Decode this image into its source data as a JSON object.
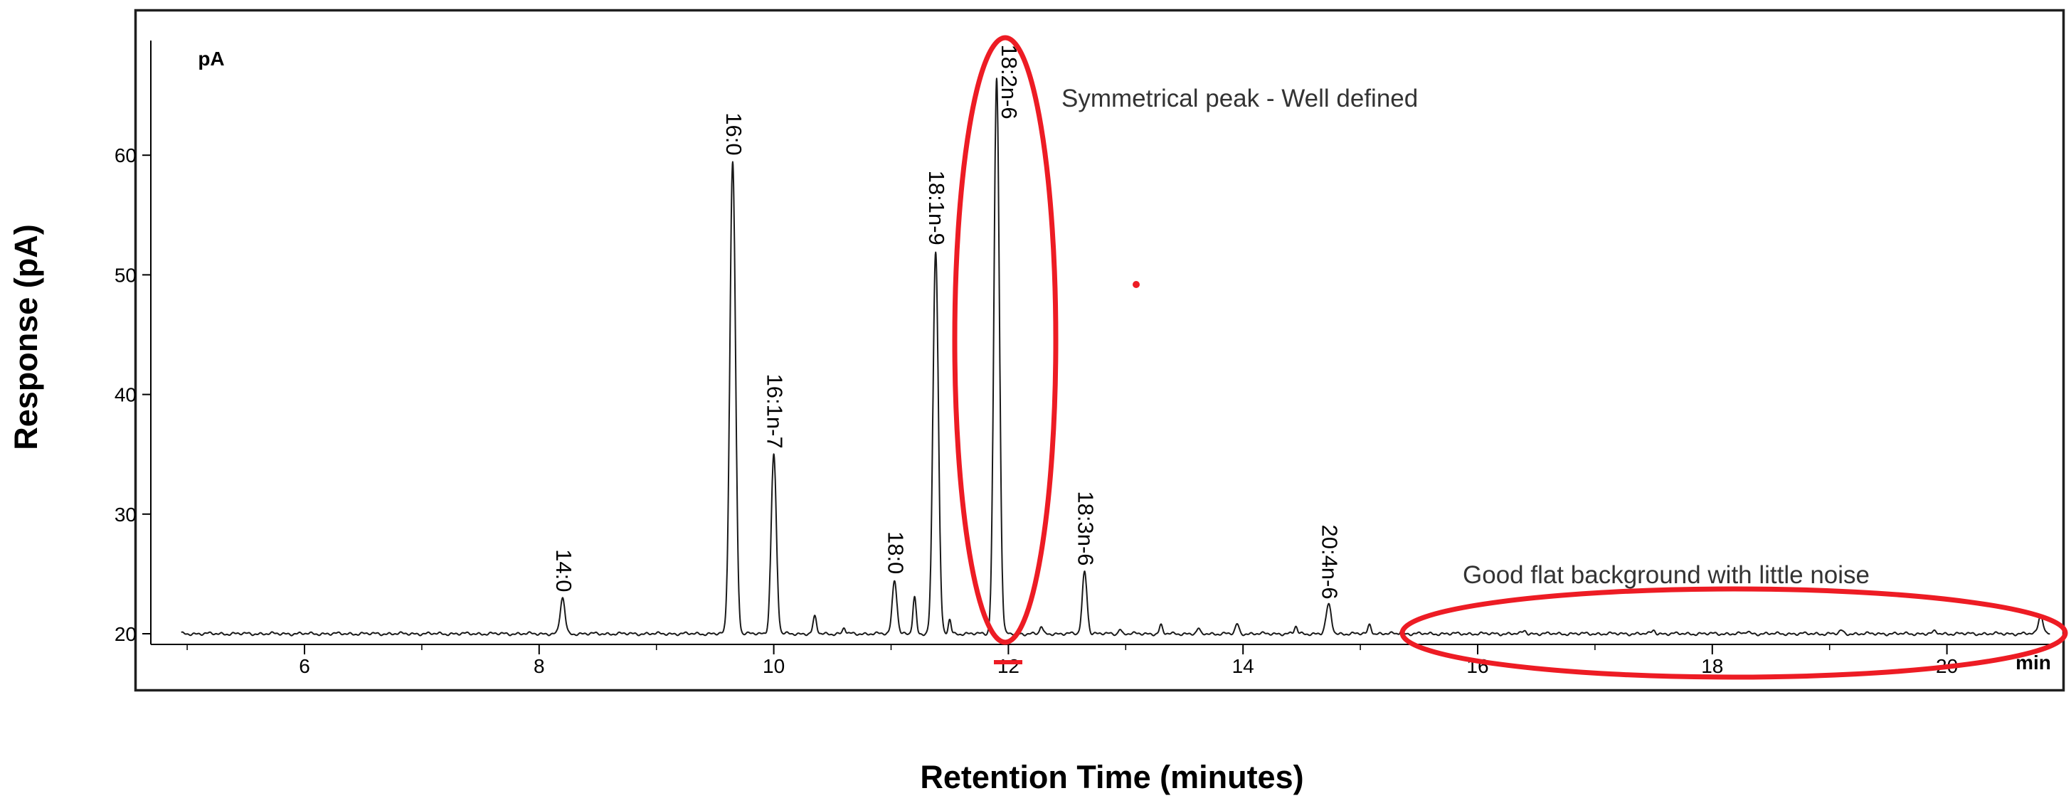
{
  "chart_data": {
    "type": "line",
    "chart_kind": "gas-chromatogram",
    "title": "",
    "xlabel": "Retention Time (minutes)",
    "ylabel": "Response (pA)",
    "x_unit_label": "min",
    "y_unit_label": "pA",
    "xlim": [
      4.95,
      20.88
    ],
    "ylim": [
      19,
      72
    ],
    "x_ticks_major": [
      6,
      8,
      10,
      12,
      14,
      16,
      18,
      20
    ],
    "x_ticks_minor": [
      5,
      7,
      9,
      11,
      13,
      15,
      17,
      19
    ],
    "y_ticks": [
      20,
      30,
      40,
      50,
      60
    ],
    "grid": false,
    "legend": false,
    "baseline_pA": 20,
    "peaks": [
      {
        "label": "14:0",
        "rt_min": 8.2,
        "apex_pA": 23.0,
        "sigma_min": 0.02
      },
      {
        "label": "16:0",
        "rt_min": 9.65,
        "apex_pA": 59.5,
        "sigma_min": 0.024
      },
      {
        "label": "16:1n-7",
        "rt_min": 10.0,
        "apex_pA": 35.0,
        "sigma_min": 0.022
      },
      {
        "label": "18:0",
        "rt_min": 11.03,
        "apex_pA": 24.5,
        "sigma_min": 0.02
      },
      {
        "label": "18:1n-9",
        "rt_min": 11.38,
        "apex_pA": 52.0,
        "sigma_min": 0.023
      },
      {
        "label": "18:2n-6",
        "rt_min": 11.9,
        "apex_pA": 66.5,
        "sigma_min": 0.023,
        "label_dx": 16
      },
      {
        "label": "18:3n-6",
        "rt_min": 12.65,
        "apex_pA": 25.2,
        "sigma_min": 0.02
      },
      {
        "label": "20:4n-6",
        "rt_min": 14.73,
        "apex_pA": 22.4,
        "sigma_min": 0.022
      }
    ],
    "minor_features": [
      {
        "rt_min": 10.35,
        "amp_pA": 1.4,
        "sigma_min": 0.015
      },
      {
        "rt_min": 10.6,
        "amp_pA": 0.5,
        "sigma_min": 0.012
      },
      {
        "rt_min": 11.2,
        "amp_pA": 3.0,
        "sigma_min": 0.014
      },
      {
        "rt_min": 11.5,
        "amp_pA": 1.2,
        "sigma_min": 0.012
      },
      {
        "rt_min": 12.28,
        "amp_pA": 0.6,
        "sigma_min": 0.012
      },
      {
        "rt_min": 12.95,
        "amp_pA": 0.4,
        "sigma_min": 0.012
      },
      {
        "rt_min": 13.3,
        "amp_pA": 0.7,
        "sigma_min": 0.013
      },
      {
        "rt_min": 13.62,
        "amp_pA": 0.4,
        "sigma_min": 0.012
      },
      {
        "rt_min": 13.95,
        "amp_pA": 0.8,
        "sigma_min": 0.015
      },
      {
        "rt_min": 14.45,
        "amp_pA": 0.6,
        "sigma_min": 0.013
      },
      {
        "rt_min": 15.08,
        "amp_pA": 0.8,
        "sigma_min": 0.014
      },
      {
        "rt_min": 15.35,
        "amp_pA": 0.3,
        "sigma_min": 0.012
      },
      {
        "rt_min": 16.4,
        "amp_pA": 0.25,
        "sigma_min": 0.015
      },
      {
        "rt_min": 17.5,
        "amp_pA": 0.3,
        "sigma_min": 0.015
      },
      {
        "rt_min": 18.3,
        "amp_pA": 0.2,
        "sigma_min": 0.015
      },
      {
        "rt_min": 19.1,
        "amp_pA": 0.25,
        "sigma_min": 0.015
      },
      {
        "rt_min": 19.9,
        "amp_pA": 0.2,
        "sigma_min": 0.015
      },
      {
        "rt_min": 20.8,
        "amp_pA": 1.6,
        "sigma_min": 0.02
      }
    ],
    "annotations": [
      {
        "text": "Symmetrical peak - Well defined",
        "refers_to": "18:2n-6 peak"
      },
      {
        "text": "Good flat background with little noise",
        "refers_to": "flat baseline region 15.5-21 min"
      }
    ],
    "highlights": [
      {
        "shape": "ellipse",
        "around": "18:2n-6 peak"
      },
      {
        "shape": "ellipse",
        "around": "flat baseline region"
      }
    ],
    "colors": {
      "trace": "#1a1a1a",
      "axis": "#000000",
      "highlight_red": "#ed1c24",
      "annotation_text": "#333333",
      "background": "#ffffff"
    }
  }
}
